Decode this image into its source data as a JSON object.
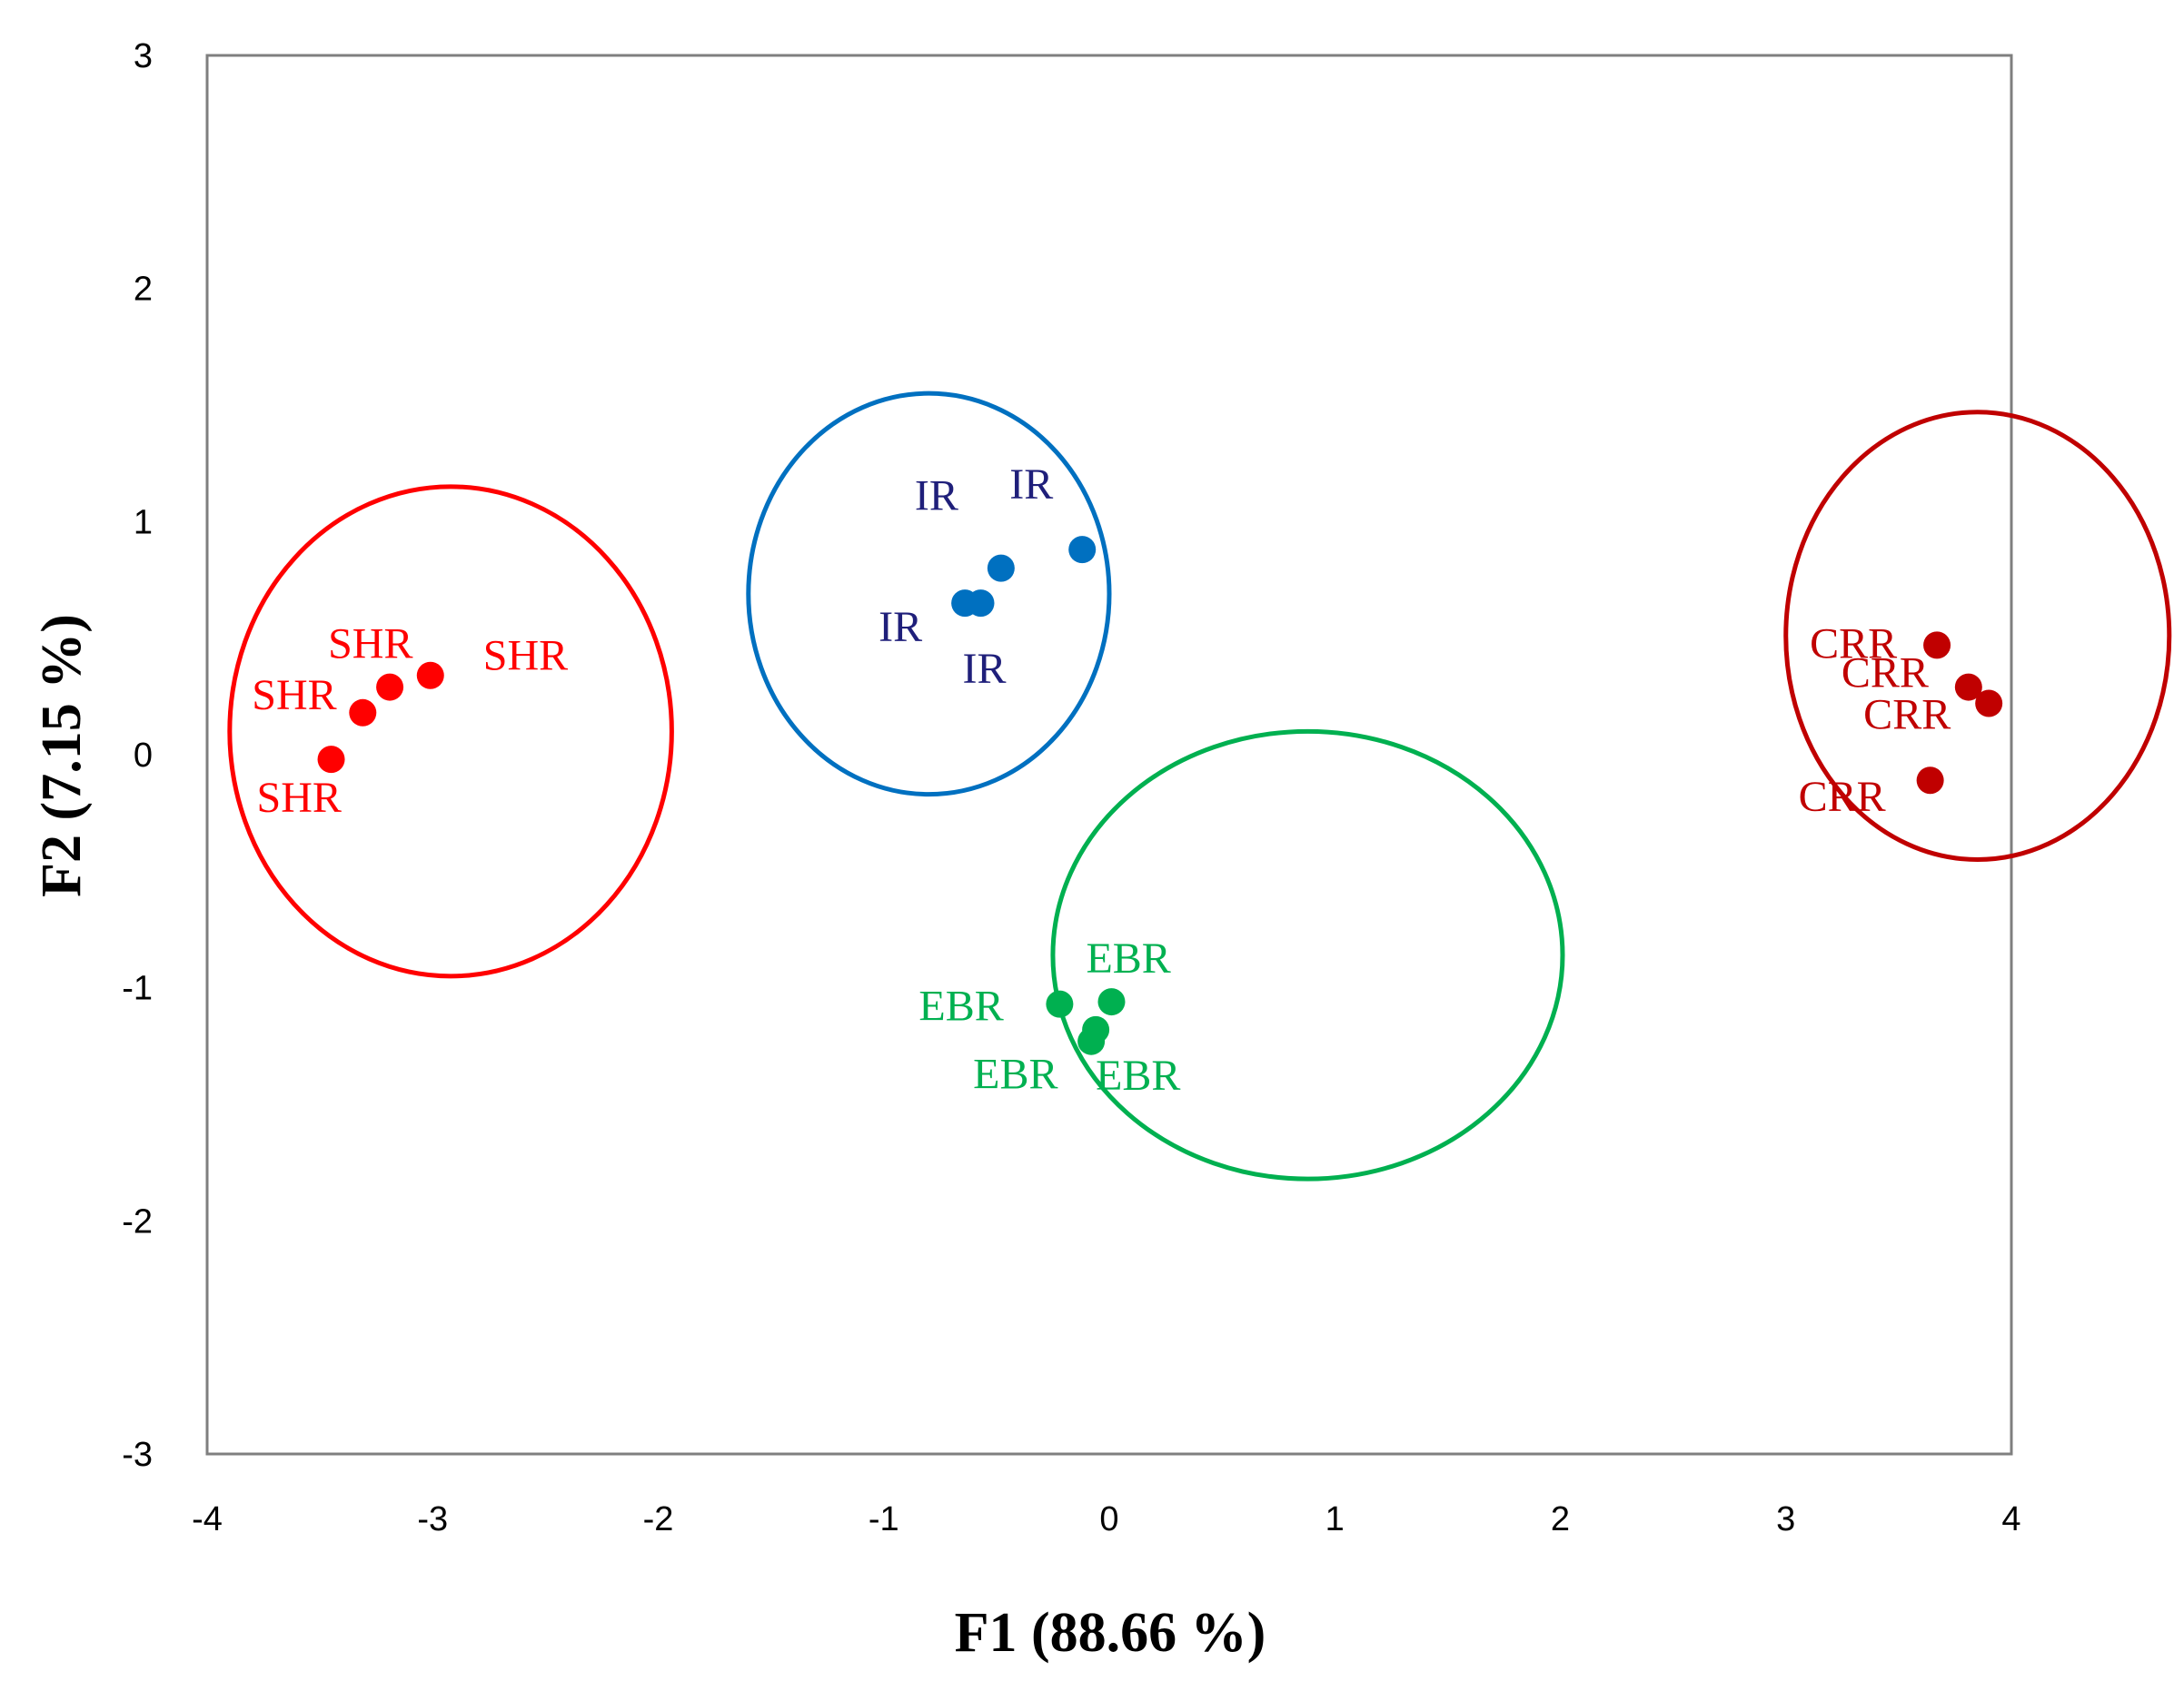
{
  "chart_data": {
    "type": "scatter",
    "title": "",
    "xlabel": "F1 (88.66 %)",
    "ylabel": "F2 (7.15 %)",
    "xlim": [
      -4,
      4
    ],
    "ylim": [
      -3,
      3
    ],
    "xticks": [
      "-4",
      "-3",
      "-2",
      "-1",
      "0",
      "1",
      "2",
      "3",
      "4"
    ],
    "yticks": [
      "3",
      "2",
      "1",
      "0",
      "-1",
      "-2",
      "-3"
    ],
    "grid": false,
    "legend": "none",
    "series": [
      {
        "name": "SHR",
        "color": "#ff0000",
        "points": [
          {
            "x": -3.45,
            "y": -0.02,
            "label": "SHR"
          },
          {
            "x": -3.31,
            "y": 0.18,
            "label": "SHR"
          },
          {
            "x": -3.19,
            "y": 0.29,
            "label": "SHR"
          },
          {
            "x": -3.01,
            "y": 0.34,
            "label": "SHR"
          }
        ],
        "ellipse": {
          "cx": -2.92,
          "cy": 0.1,
          "rx": 0.98,
          "ry": 1.05
        }
      },
      {
        "name": "IR",
        "color": "#0070c0",
        "label_color": "#1f1f7a",
        "points": [
          {
            "x": -0.64,
            "y": 0.65,
            "label": "IR"
          },
          {
            "x": -0.57,
            "y": 0.65,
            "label": "IR"
          },
          {
            "x": -0.48,
            "y": 0.8,
            "label": "IR"
          },
          {
            "x": -0.12,
            "y": 0.88,
            "label": "IR"
          }
        ],
        "ellipse": {
          "cx": -0.8,
          "cy": 0.69,
          "rx": 0.8,
          "ry": 0.86
        }
      },
      {
        "name": "EBR",
        "color": "#00b050",
        "points": [
          {
            "x": -0.22,
            "y": -1.07,
            "label": "EBR"
          },
          {
            "x": 0.01,
            "y": -1.06,
            "label": "EBR"
          },
          {
            "x": -0.06,
            "y": -1.18,
            "label": "EBR"
          },
          {
            "x": -0.08,
            "y": -1.23,
            "label": "EBR"
          }
        ],
        "ellipse": {
          "cx": 0.88,
          "cy": -0.86,
          "rx": 1.13,
          "ry": 0.96
        }
      },
      {
        "name": "CRR",
        "color": "#c00000",
        "points": [
          {
            "x": 3.67,
            "y": 0.47,
            "label": "CRR"
          },
          {
            "x": 3.81,
            "y": 0.29,
            "label": "CRR"
          },
          {
            "x": 3.9,
            "y": 0.22,
            "label": "CRR"
          },
          {
            "x": 3.64,
            "y": -0.11,
            "label": "CRR"
          }
        ],
        "ellipse": {
          "cx": 3.85,
          "cy": 0.51,
          "rx": 0.85,
          "ry": 0.96
        }
      }
    ]
  }
}
